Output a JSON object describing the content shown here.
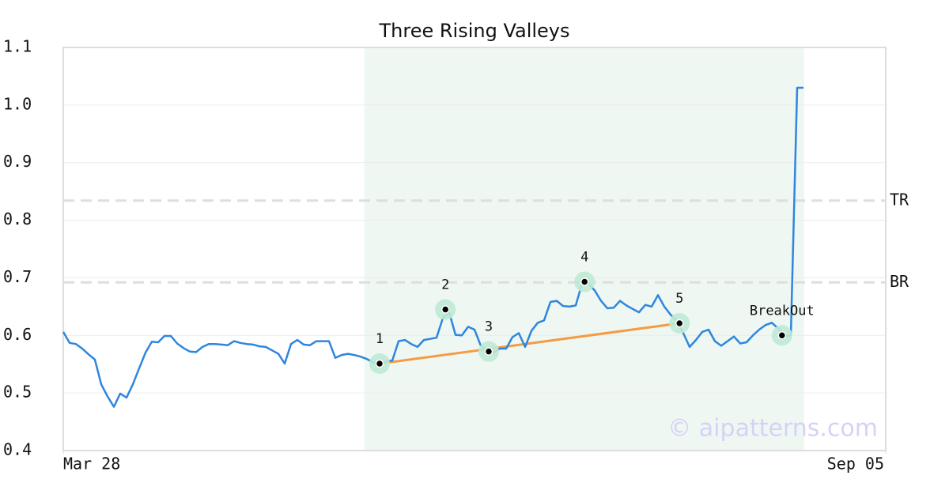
{
  "chart_data": {
    "type": "line",
    "title": "Three Rising Valleys",
    "x": [
      0,
      1,
      2,
      3,
      4,
      5,
      6,
      7,
      8,
      9,
      10,
      11,
      12,
      13,
      14,
      15,
      16,
      17,
      18,
      19,
      20,
      21,
      22,
      23,
      24,
      25,
      26,
      27,
      28,
      29,
      30,
      31,
      32,
      33,
      34,
      35,
      36,
      37,
      38,
      39,
      40,
      41,
      42,
      43,
      44,
      45,
      46,
      47,
      48,
      49,
      50,
      51,
      52,
      53,
      54,
      55,
      56,
      57,
      58,
      59,
      60,
      61,
      62,
      63,
      64,
      65,
      66,
      67,
      68,
      69,
      70,
      71,
      72,
      73,
      74,
      75,
      76,
      77,
      78,
      79,
      80,
      81,
      82,
      83,
      84,
      85,
      86,
      87,
      88,
      89,
      90,
      91,
      92,
      93,
      94,
      95,
      96,
      97,
      98,
      99,
      100,
      101,
      102,
      103,
      104,
      105,
      106,
      107,
      108,
      109,
      110,
      111,
      112,
      113,
      114,
      115,
      116,
      117
    ],
    "series": [
      {
        "color": "#2e86de",
        "values": [
          0.606,
          0.587,
          0.585,
          0.577,
          0.567,
          0.558,
          0.515,
          0.494,
          0.476,
          0.499,
          0.492,
          0.515,
          0.543,
          0.57,
          0.589,
          0.588,
          0.599,
          0.599,
          0.586,
          0.578,
          0.572,
          0.571,
          0.58,
          0.585,
          0.585,
          0.584,
          0.583,
          0.59,
          0.587,
          0.585,
          0.584,
          0.581,
          0.58,
          0.574,
          0.568,
          0.551,
          0.585,
          0.592,
          0.584,
          0.583,
          0.59,
          0.59,
          0.59,
          0.561,
          0.566,
          0.568,
          0.566,
          0.563,
          0.559,
          0.553,
          0.55,
          0.555,
          0.556,
          0.59,
          0.592,
          0.585,
          0.58,
          0.592,
          0.594,
          0.596,
          0.63,
          0.64,
          0.601,
          0.6,
          0.615,
          0.61,
          0.582,
          0.575,
          0.57,
          0.577,
          0.577,
          0.597,
          0.604,
          0.58,
          0.608,
          0.622,
          0.626,
          0.658,
          0.66,
          0.651,
          0.65,
          0.652,
          0.69,
          0.69,
          0.678,
          0.66,
          0.647,
          0.648,
          0.66,
          0.652,
          0.646,
          0.64,
          0.653,
          0.65,
          0.67,
          0.65,
          0.636,
          0.625,
          0.604,
          0.58,
          0.592,
          0.606,
          0.61,
          0.59,
          0.582,
          0.59,
          0.598,
          0.586,
          0.588,
          0.6,
          0.61,
          0.618,
          0.622,
          0.612,
          0.598,
          0.6,
          1.03,
          1.03
        ]
      }
    ],
    "xlim": [
      0,
      130
    ],
    "xticks": [
      {
        "value": 0,
        "label": "Mar 28"
      },
      {
        "value": 130,
        "label": "Sep 05"
      }
    ],
    "ylim": [
      0.4,
      1.1
    ],
    "yticks": [
      0.4,
      0.5,
      0.6,
      0.7,
      0.8,
      0.9,
      {
        "value": 1,
        "label": "1.0"
      },
      1.1
    ],
    "grid": true,
    "highlight": {
      "x": [
        47.6,
        117.1
      ],
      "color": "#eef7f2"
    },
    "hlines": [
      {
        "label": "TR",
        "value": 0.834
      },
      {
        "label": "BR",
        "value": 0.692
      }
    ],
    "trendline": {
      "color": "#f39c44",
      "x": [
        50,
        97.4
      ],
      "values": [
        0.551,
        0.621
      ]
    },
    "markers": [
      {
        "label": "1",
        "x": 50,
        "y": 0.551
      },
      {
        "label": "2",
        "x": 60.4,
        "y": 0.645
      },
      {
        "label": "3",
        "x": 67.25,
        "y": 0.572
      },
      {
        "label": "4",
        "x": 82.4,
        "y": 0.693
      },
      {
        "label": "5",
        "x": 97.4,
        "y": 0.621
      },
      {
        "label": "BreakOut",
        "x": 113.6,
        "y": 0.6
      }
    ],
    "marker_color": "#bfe9d5",
    "watermark": "© aipatterns.com"
  }
}
